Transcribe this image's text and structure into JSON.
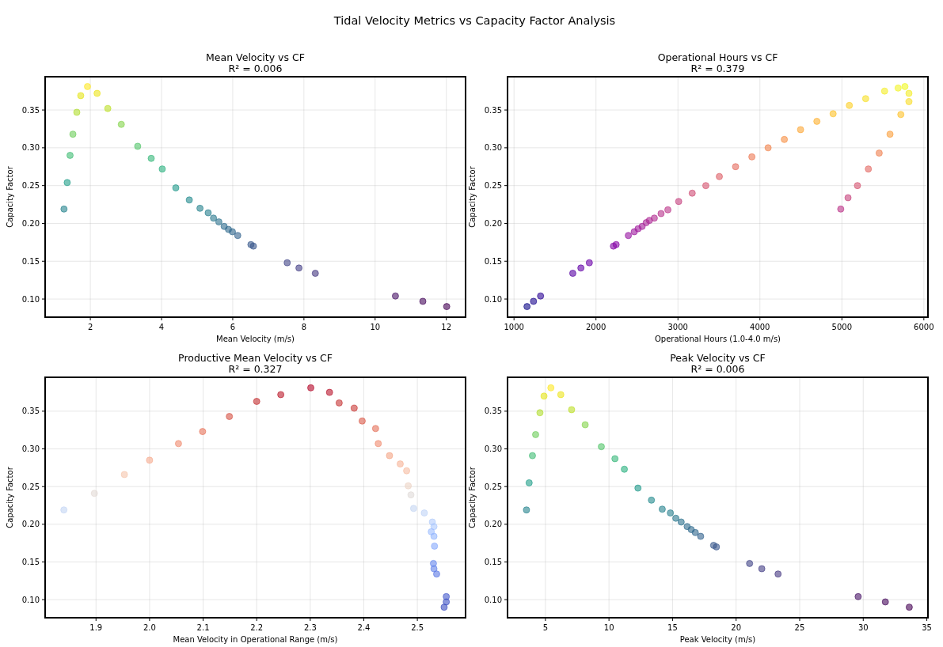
{
  "chart_data": [
    {
      "type": "scatter",
      "title": "Mean Velocity vs CF",
      "subtitle": "R² = 0.006",
      "annotations": [
        "Tidal Velocity Metrics vs Capacity Factor Analysis"
      ],
      "xlabel": "Mean Velocity (m/s)",
      "ylabel": "Capacity Factor",
      "grid": true,
      "marker": "circle",
      "xlim": [
        0.73,
        12.54
      ],
      "ylim": [
        0.076,
        0.394
      ],
      "xticks": [
        2,
        4,
        6,
        8,
        10,
        12
      ],
      "yticks": [
        {
          "value": 0.1,
          "label": "0.10"
        },
        {
          "value": 0.15,
          "label": "0.15"
        },
        {
          "value": 0.2,
          "label": "0.20"
        },
        {
          "value": 0.25,
          "label": "0.25"
        },
        {
          "value": 0.3,
          "label": "0.30"
        },
        {
          "value": 0.35,
          "label": "0.35"
        }
      ],
      "x": [
        1.26,
        1.35,
        1.43,
        1.51,
        1.62,
        1.73,
        1.92,
        2.19,
        2.49,
        2.87,
        3.33,
        3.71,
        4.02,
        4.4,
        4.78,
        5.08,
        5.31,
        5.46,
        5.61,
        5.76,
        5.88,
        5.99,
        6.14,
        6.51,
        6.58,
        7.53,
        7.86,
        8.32,
        10.57,
        11.34,
        12.01
      ],
      "values": [
        0.219,
        0.254,
        0.29,
        0.318,
        0.347,
        0.369,
        0.381,
        0.372,
        0.352,
        0.331,
        0.302,
        0.286,
        0.272,
        0.247,
        0.231,
        0.22,
        0.214,
        0.207,
        0.202,
        0.196,
        0.192,
        0.189,
        0.184,
        0.172,
        0.17,
        0.148,
        0.141,
        0.134,
        0.104,
        0.097,
        0.09
      ],
      "colors": [
        "#25838e",
        "#1f9e89",
        "#3fbc73",
        "#6ccd5a",
        "#b0dd2f",
        "#e5e419",
        "#fde725",
        "#ece51b",
        "#bddf26",
        "#84d44b",
        "#52c569",
        "#35b779",
        "#2ab07f",
        "#1f998a",
        "#238a8d",
        "#26828e",
        "#277f8e",
        "#2a788e",
        "#2c728e",
        "#2f6c8e",
        "#306a8e",
        "#31688e",
        "#33638d",
        "#38598c",
        "#39568c",
        "#414487",
        "#433e85",
        "#453781",
        "#471365",
        "#46085c",
        "#440154"
      ]
    },
    {
      "type": "scatter",
      "title": "Operational Hours vs CF",
      "subtitle": "R² = 0.379",
      "xlabel": "Operational Hours (1.0-4.0 m/s)",
      "ylabel": "Capacity Factor",
      "grid": true,
      "marker": "circle",
      "xlim": [
        921,
        6050
      ],
      "ylim": [
        0.076,
        0.394
      ],
      "xticks": [
        1000,
        2000,
        3000,
        4000,
        5000,
        6000
      ],
      "yticks": [
        {
          "value": 0.1,
          "label": "0.10"
        },
        {
          "value": 0.15,
          "label": "0.15"
        },
        {
          "value": 0.2,
          "label": "0.20"
        },
        {
          "value": 0.25,
          "label": "0.25"
        },
        {
          "value": 0.3,
          "label": "0.30"
        },
        {
          "value": 0.35,
          "label": "0.35"
        }
      ],
      "x": [
        1159,
        1238,
        1324,
        1717,
        1816,
        1919,
        2213,
        2246,
        2395,
        2467,
        2514,
        2563,
        2613,
        2652,
        2712,
        2794,
        2877,
        3009,
        3174,
        3340,
        3505,
        3703,
        3902,
        4100,
        4298,
        4496,
        4695,
        4893,
        5091,
        5290,
        5521,
        5686,
        5769,
        5818,
        5818,
        5719,
        5587,
        5455,
        5323,
        5190,
        5075,
        4986
      ],
      "values": [
        0.09,
        0.097,
        0.104,
        0.134,
        0.141,
        0.148,
        0.17,
        0.172,
        0.184,
        0.189,
        0.193,
        0.196,
        0.201,
        0.204,
        0.207,
        0.213,
        0.218,
        0.229,
        0.24,
        0.25,
        0.262,
        0.275,
        0.288,
        0.3,
        0.311,
        0.324,
        0.335,
        0.345,
        0.356,
        0.365,
        0.375,
        0.379,
        0.381,
        0.372,
        0.361,
        0.344,
        0.318,
        0.293,
        0.272,
        0.25,
        0.234,
        0.219
      ],
      "colors": [
        "#0d0887",
        "#1b068d",
        "#2c0594",
        "#5601a4",
        "#6100a7",
        "#6a00a8",
        "#8405a7",
        "#8707a6",
        "#9613a1",
        "#9c179e",
        "#a01a9c",
        "#a21d9a",
        "#a82296",
        "#ab2494",
        "#b12a90",
        "#b6308b",
        "#bb3488",
        "#c5407e",
        "#cf4c74",
        "#d5536f",
        "#dd5e66",
        "#e56b5d",
        "#ec7853",
        "#f1834c",
        "#f79044",
        "#fca636",
        "#fdb130",
        "#fdc229",
        "#fcce25",
        "#f7e024",
        "#f4ed27",
        "#f2f424",
        "#f0f921",
        "#f4ed27",
        "#f9dc24",
        "#fdc229",
        "#fa9e3b",
        "#ef7f4f",
        "#e26660",
        "#d5536f",
        "#c7427c",
        "#bb3488"
      ]
    },
    {
      "type": "scatter",
      "title": "Productive Mean Velocity vs CF",
      "subtitle": "R² = 0.327",
      "xlabel": "Mean Velocity in Operational Range (m/s)",
      "ylabel": "Capacity Factor",
      "grid": true,
      "marker": "circle",
      "xlim": [
        1.805,
        2.59
      ],
      "ylim": [
        0.076,
        0.395
      ],
      "xticks": [
        1.9,
        {
          "value": 2.0,
          "label": "2.0"
        },
        2.1,
        2.2,
        2.3,
        2.4,
        2.5
      ],
      "yticks": [
        {
          "value": 0.1,
          "label": "0.10"
        },
        {
          "value": 0.15,
          "label": "0.15"
        },
        {
          "value": 0.2,
          "label": "0.20"
        },
        {
          "value": 0.25,
          "label": "0.25"
        },
        {
          "value": 0.3,
          "label": "0.30"
        },
        {
          "value": 0.35,
          "label": "0.35"
        }
      ],
      "x": [
        1.84,
        1.897,
        1.953,
        2.0,
        2.054,
        2.099,
        2.149,
        2.2,
        2.245,
        2.301,
        2.336,
        2.354,
        2.382,
        2.397,
        2.422,
        2.427,
        2.448,
        2.468,
        2.48,
        2.483,
        2.488,
        2.493,
        2.513,
        2.528,
        2.531,
        2.526,
        2.531,
        2.532,
        2.53,
        2.531,
        2.536,
        2.554,
        2.554,
        2.55
      ],
      "values": [
        0.219,
        0.241,
        0.266,
        0.285,
        0.307,
        0.323,
        0.343,
        0.363,
        0.372,
        0.381,
        0.375,
        0.361,
        0.354,
        0.337,
        0.327,
        0.307,
        0.291,
        0.28,
        0.271,
        0.251,
        0.239,
        0.221,
        0.215,
        0.203,
        0.197,
        0.19,
        0.184,
        0.171,
        0.148,
        0.141,
        0.134,
        0.104,
        0.097,
        0.09
      ],
      "colors": [
        "#c3d5f4",
        "#e2dad5",
        "#f5c4ac",
        "#f6aa8d",
        "#f08b6e",
        "#e7745b",
        "#d65244",
        "#c32e31",
        "#bb1b2c",
        "#b40426",
        "#b8122a",
        "#c53334",
        "#ca3b37",
        "#da5a49",
        "#e57058",
        "#f08b6e",
        "#f4a384",
        "#f7b396",
        "#f6bda2",
        "#ecd3c5",
        "#e0dbd8",
        "#c5d6f2",
        "#bfd3f6",
        "#b2ccfb",
        "#abc8fd",
        "#9bbcff",
        "#93b5fe",
        "#86a9fc",
        "#6788ee",
        "#6282ea",
        "#5a78e4",
        "#4358cb",
        "#3e51c5",
        "#3b4cc0"
      ]
    },
    {
      "type": "scatter",
      "title": "Peak Velocity vs CF",
      "subtitle": "R² = 0.006",
      "xlabel": "Peak Velocity (m/s)",
      "ylabel": "Capacity Factor",
      "grid": true,
      "marker": "circle",
      "xlim": [
        2.02,
        35.09
      ],
      "ylim": [
        0.076,
        0.395
      ],
      "xticks": [
        5,
        10,
        15,
        20,
        25,
        30,
        35
      ],
      "yticks": [
        {
          "value": 0.1,
          "label": "0.10"
        },
        {
          "value": 0.15,
          "label": "0.15"
        },
        {
          "value": 0.2,
          "label": "0.20"
        },
        {
          "value": 0.25,
          "label": "0.25"
        },
        {
          "value": 0.3,
          "label": "0.30"
        },
        {
          "value": 0.35,
          "label": "0.35"
        }
      ],
      "x": [
        3.51,
        3.72,
        3.98,
        4.23,
        4.57,
        4.89,
        5.43,
        6.21,
        7.06,
        8.13,
        9.4,
        10.47,
        11.21,
        12.28,
        13.34,
        14.19,
        14.83,
        15.26,
        15.68,
        16.15,
        16.47,
        16.79,
        17.21,
        18.23,
        18.45,
        21.06,
        22.02,
        23.3,
        29.6,
        31.74,
        33.62
      ],
      "values": [
        0.219,
        0.255,
        0.291,
        0.319,
        0.348,
        0.37,
        0.381,
        0.372,
        0.352,
        0.332,
        0.303,
        0.287,
        0.273,
        0.248,
        0.232,
        0.22,
        0.215,
        0.208,
        0.203,
        0.197,
        0.193,
        0.189,
        0.184,
        0.172,
        0.17,
        0.148,
        0.141,
        0.134,
        0.104,
        0.097,
        0.09
      ],
      "colors": [
        "#25838e",
        "#1f9e89",
        "#3fbc73",
        "#6ccd5a",
        "#b0dd2f",
        "#e5e419",
        "#fde725",
        "#ece51b",
        "#bddf26",
        "#84d44b",
        "#52c569",
        "#35b779",
        "#2ab07f",
        "#1f998a",
        "#238a8d",
        "#26828e",
        "#277f8e",
        "#2a788e",
        "#2c728e",
        "#2f6c8e",
        "#306a8e",
        "#31688e",
        "#33638d",
        "#38598c",
        "#39568c",
        "#414487",
        "#433e85",
        "#453781",
        "#471365",
        "#46085c",
        "#440154"
      ]
    }
  ]
}
